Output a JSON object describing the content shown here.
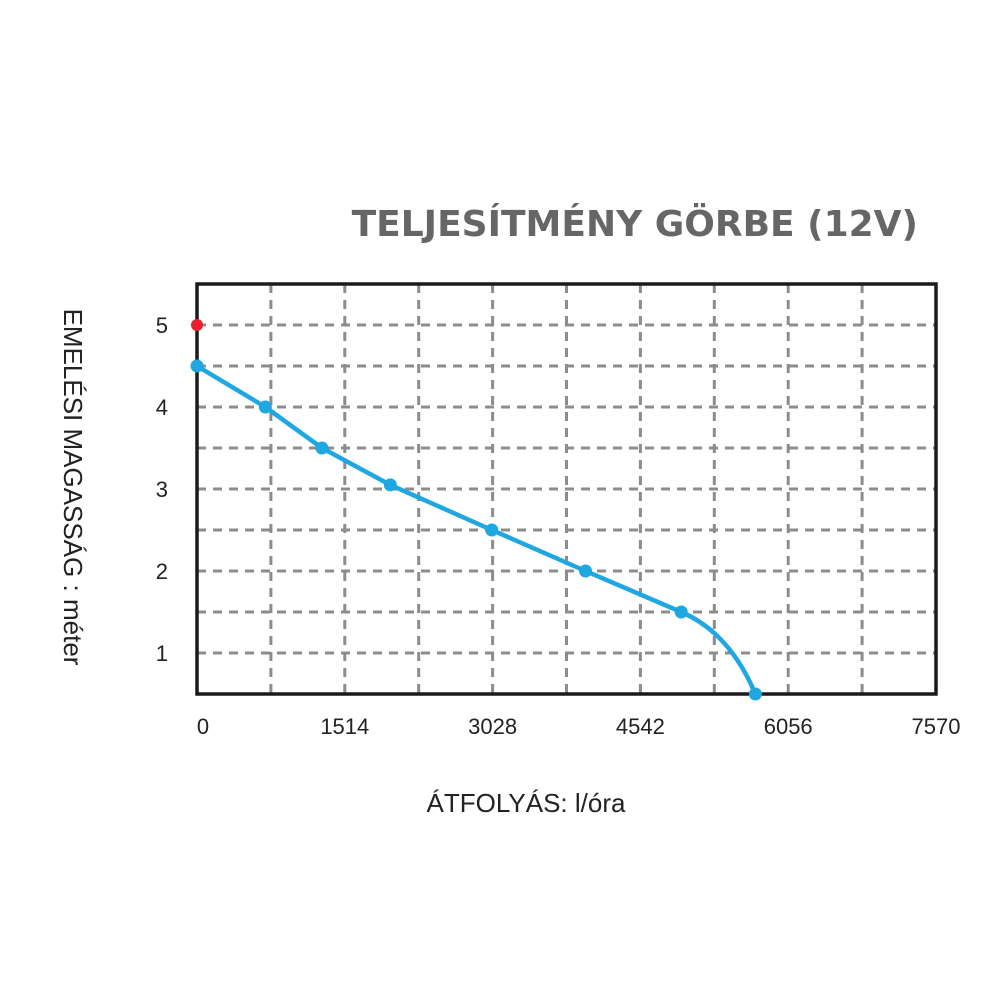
{
  "chart_data": {
    "type": "line",
    "title": "TELJESÍTMÉNY GÖRBE (12V)",
    "xlabel": "ÁTFOLYÁS: l/óra",
    "ylabel": "EMELÉSI MAGASSÁG : méter",
    "x_ticks": [
      0,
      1514,
      3028,
      4542,
      6056,
      7570
    ],
    "y_ticks": [
      1,
      2,
      3,
      4,
      5
    ],
    "xlim": [
      0,
      7570
    ],
    "ylim": [
      0.5,
      5.5
    ],
    "grid": true,
    "series": [
      {
        "color": "#1ea7e1",
        "points": [
          {
            "x": 0,
            "y": 4.5
          },
          {
            "x": 700,
            "y": 4.0
          },
          {
            "x": 1280,
            "y": 3.5
          },
          {
            "x": 1980,
            "y": 3.05
          },
          {
            "x": 3020,
            "y": 2.5
          },
          {
            "x": 3980,
            "y": 2.0
          },
          {
            "x": 4960,
            "y": 1.5
          },
          {
            "x": 5720,
            "y": 0.5
          }
        ]
      }
    ],
    "marker": {
      "x": 0,
      "y": 5.0,
      "color": "#e8202a"
    }
  }
}
